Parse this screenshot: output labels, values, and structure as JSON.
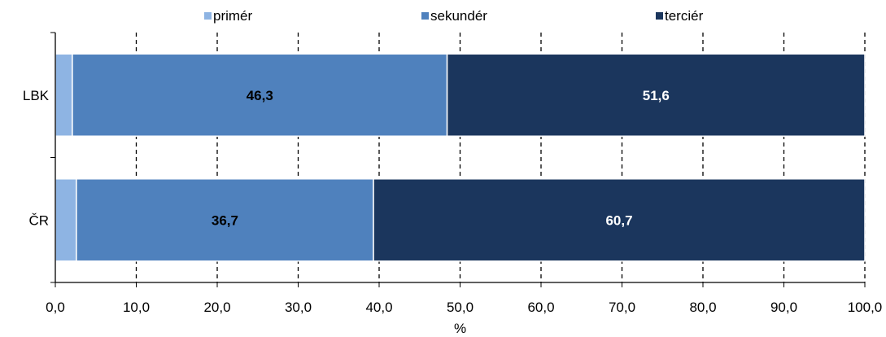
{
  "chart_data": {
    "type": "bar",
    "orientation": "horizontal",
    "stacked": true,
    "title": "",
    "xlabel": "%",
    "ylabel": "",
    "xlim": [
      0,
      100
    ],
    "x_ticks": [
      "0,0",
      "10,0",
      "20,0",
      "30,0",
      "40,0",
      "50,0",
      "60,0",
      "70,0",
      "80,0",
      "90,0",
      "100,0"
    ],
    "categories": [
      "LBK",
      "ČR"
    ],
    "series": [
      {
        "name": "primér",
        "values": [
          2.1,
          2.6
        ],
        "color": "#8eb4e3",
        "data_labels": [
          "",
          ""
        ],
        "label_color": "#000000"
      },
      {
        "name": "sekundér",
        "values": [
          46.3,
          36.7
        ],
        "color": "#4f81bd",
        "data_labels": [
          "46,3",
          "36,7"
        ],
        "label_color": "#000000"
      },
      {
        "name": "terciér",
        "values": [
          51.6,
          60.7
        ],
        "color": "#1b365d",
        "data_labels": [
          "51,6",
          "60,7"
        ],
        "label_color": "#ffffff"
      }
    ],
    "grid": {
      "vertical": true,
      "style": "dashed"
    },
    "legend": "top-center"
  }
}
